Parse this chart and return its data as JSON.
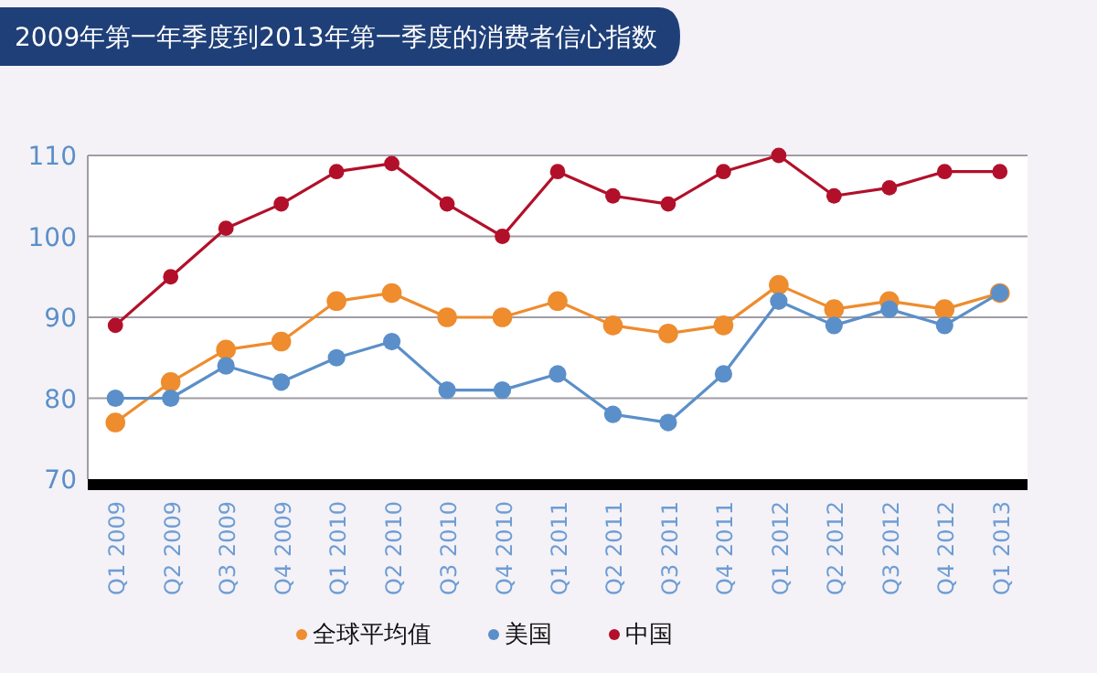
{
  "chart_data": {
    "type": "line",
    "title": "2009年第一年季度到2013年第一季度的消费者信心指数",
    "categories": [
      "Q1 2009",
      "Q2 2009",
      "Q3 2009",
      "Q4 2009",
      "Q1 2010",
      "Q2 2010",
      "Q3 2010",
      "Q4 2010",
      "Q1 2011",
      "Q2 2011",
      "Q3 2011",
      "Q4 2011",
      "Q1 2012",
      "Q2 2012",
      "Q3 2012",
      "Q4 2012",
      "Q1 2013"
    ],
    "series": [
      {
        "name": "全球平均值",
        "color": "#ee8c2e",
        "values": [
          77,
          82,
          86,
          87,
          92,
          93,
          90,
          90,
          92,
          89,
          88,
          89,
          94,
          91,
          92,
          91,
          93
        ]
      },
      {
        "name": "美国",
        "color": "#5b8fc9",
        "values": [
          80,
          80,
          84,
          82,
          85,
          87,
          81,
          81,
          83,
          78,
          77,
          83,
          92,
          89,
          91,
          89,
          93
        ]
      },
      {
        "name": "中国",
        "color": "#b2102a",
        "values": [
          89,
          95,
          101,
          104,
          108,
          109,
          104,
          100,
          108,
          105,
          104,
          108,
          110,
          105,
          106,
          108,
          108
        ]
      }
    ],
    "ylim": [
      70,
      110
    ],
    "yticks": [
      70,
      80,
      90,
      100,
      110
    ],
    "grid": "y",
    "legend": "bottom",
    "marker": "circle",
    "line_style": "solid"
  }
}
